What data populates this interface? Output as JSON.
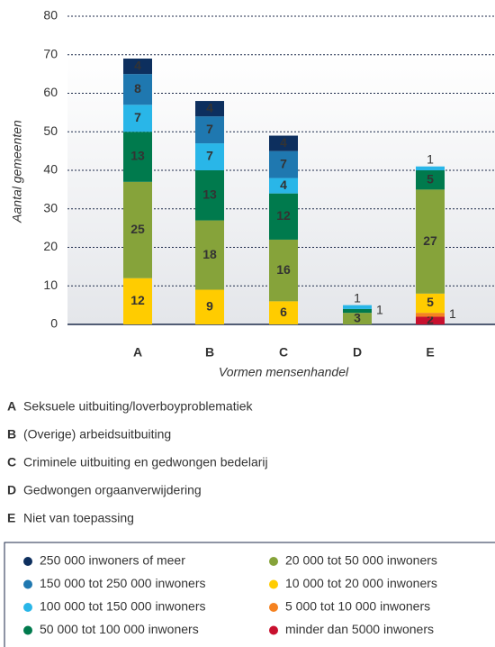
{
  "chart_data": {
    "type": "stacked_bar",
    "y_label": "Aantal gemeenten",
    "x_label": "Vormen mensenhandel",
    "categories": [
      "A",
      "B",
      "C",
      "D",
      "E"
    ],
    "ylim": [
      0,
      80
    ],
    "yticks": [
      0,
      10,
      20,
      30,
      40,
      50,
      60,
      70,
      80
    ],
    "grid": true,
    "series": [
      {
        "name": "minder dan 5000 inwoners",
        "color": "#c8102e",
        "values": [
          0,
          0,
          0,
          0,
          2
        ]
      },
      {
        "name": "5 000 tot 10 000 inwoners",
        "color": "#f58220",
        "values": [
          0,
          0,
          0,
          0,
          1
        ]
      },
      {
        "name": "10 000 tot 20 000 inwoners",
        "color": "#ffcc00",
        "values": [
          12,
          9,
          6,
          0,
          5
        ]
      },
      {
        "name": "20 000 tot 50 000 inwoners",
        "color": "#86a33a",
        "values": [
          25,
          18,
          16,
          3,
          27
        ]
      },
      {
        "name": "50 000 tot 100 000 inwoners",
        "color": "#007a4d",
        "values": [
          13,
          13,
          12,
          1,
          5
        ]
      },
      {
        "name": "100 000 tot 150 000 inwoners",
        "color": "#29b6e8",
        "values": [
          7,
          7,
          4,
          1,
          1
        ]
      },
      {
        "name": "150 000 tot 250 000 inwoners",
        "color": "#1f78b0",
        "values": [
          8,
          7,
          7,
          0,
          0
        ]
      },
      {
        "name": "250 000 inwoners of meer",
        "color": "#0d2f5e",
        "values": [
          4,
          4,
          4,
          0,
          0
        ]
      }
    ],
    "category_notes": [
      {
        "letter": "A",
        "text": "Seksuele uitbuiting/loverboyproblematiek"
      },
      {
        "letter": "B",
        "text": "(Overige) arbeidsuitbuiting"
      },
      {
        "letter": "C",
        "text": "Criminele uitbuiting en gedwongen bedelarij"
      },
      {
        "letter": "D",
        "text": "Gedwongen orgaanverwijdering"
      },
      {
        "letter": "E",
        "text": "Niet van toepassing"
      }
    ]
  }
}
